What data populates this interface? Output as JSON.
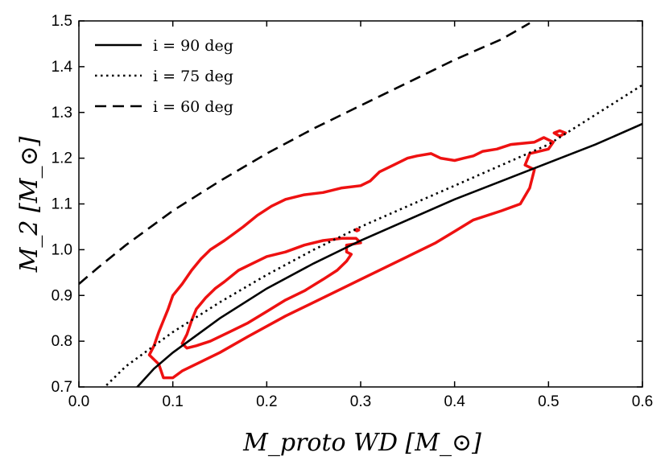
{
  "chart_data": {
    "type": "line",
    "title": "",
    "xlabel": "M_proto WD [M_⊙]",
    "ylabel": "M_2 [M_⊙]",
    "xlim": [
      0.0,
      0.6
    ],
    "ylim": [
      0.7,
      1.5
    ],
    "x_ticks": [
      "0.0",
      "0.1",
      "0.2",
      "0.3",
      "0.4",
      "0.5",
      "0.6"
    ],
    "y_ticks": [
      "0.7",
      "0.8",
      "0.9",
      "1.0",
      "1.1",
      "1.2",
      "1.3",
      "1.4",
      "1.5"
    ],
    "grid": false,
    "legend_position": "top-left",
    "series": [
      {
        "name": "i = 90 deg",
        "style": "solid",
        "color": "#000000",
        "x": [
          0.06,
          0.08,
          0.1,
          0.15,
          0.2,
          0.25,
          0.3,
          0.35,
          0.4,
          0.45,
          0.5,
          0.55,
          0.6
        ],
        "y": [
          0.695,
          0.74,
          0.775,
          0.85,
          0.915,
          0.97,
          1.02,
          1.065,
          1.11,
          1.15,
          1.19,
          1.23,
          1.275
        ]
      },
      {
        "name": "i = 75 deg",
        "style": "dotted",
        "color": "#000000",
        "x": [
          0.025,
          0.05,
          0.1,
          0.15,
          0.2,
          0.25,
          0.3,
          0.35,
          0.4,
          0.45,
          0.5,
          0.55,
          0.6
        ],
        "y": [
          0.695,
          0.745,
          0.82,
          0.885,
          0.945,
          1.0,
          1.05,
          1.095,
          1.14,
          1.185,
          1.23,
          1.295,
          1.36
        ]
      },
      {
        "name": "i = 60 deg",
        "style": "dashed",
        "color": "#000000",
        "x": [
          0.0,
          0.02,
          0.05,
          0.1,
          0.15,
          0.2,
          0.25,
          0.3,
          0.35,
          0.4,
          0.45,
          0.48
        ],
        "y": [
          0.925,
          0.96,
          1.01,
          1.085,
          1.15,
          1.21,
          1.265,
          1.315,
          1.365,
          1.415,
          1.46,
          1.495
        ]
      }
    ],
    "contours": [
      {
        "color": "#ee1111",
        "points": [
          [
            0.085,
            0.75
          ],
          [
            0.09,
            0.72
          ],
          [
            0.1,
            0.72
          ],
          [
            0.11,
            0.735
          ],
          [
            0.13,
            0.755
          ],
          [
            0.15,
            0.775
          ],
          [
            0.18,
            0.81
          ],
          [
            0.22,
            0.855
          ],
          [
            0.25,
            0.885
          ],
          [
            0.27,
            0.905
          ],
          [
            0.3,
            0.935
          ],
          [
            0.35,
            0.985
          ],
          [
            0.38,
            1.015
          ],
          [
            0.4,
            1.04
          ],
          [
            0.42,
            1.065
          ],
          [
            0.45,
            1.085
          ],
          [
            0.47,
            1.1
          ],
          [
            0.48,
            1.135
          ],
          [
            0.485,
            1.175
          ],
          [
            0.475,
            1.185
          ],
          [
            0.48,
            1.21
          ],
          [
            0.5,
            1.22
          ],
          [
            0.505,
            1.235
          ],
          [
            0.495,
            1.245
          ],
          [
            0.485,
            1.235
          ],
          [
            0.46,
            1.23
          ],
          [
            0.445,
            1.22
          ],
          [
            0.43,
            1.215
          ],
          [
            0.42,
            1.205
          ],
          [
            0.41,
            1.2
          ],
          [
            0.4,
            1.195
          ],
          [
            0.385,
            1.2
          ],
          [
            0.375,
            1.21
          ],
          [
            0.36,
            1.205
          ],
          [
            0.35,
            1.2
          ],
          [
            0.335,
            1.185
          ],
          [
            0.32,
            1.17
          ],
          [
            0.31,
            1.15
          ],
          [
            0.3,
            1.14
          ],
          [
            0.28,
            1.135
          ],
          [
            0.26,
            1.125
          ],
          [
            0.24,
            1.12
          ],
          [
            0.22,
            1.11
          ],
          [
            0.205,
            1.095
          ],
          [
            0.19,
            1.075
          ],
          [
            0.175,
            1.05
          ],
          [
            0.165,
            1.035
          ],
          [
            0.155,
            1.02
          ],
          [
            0.14,
            1.0
          ],
          [
            0.13,
            0.98
          ],
          [
            0.12,
            0.955
          ],
          [
            0.11,
            0.925
          ],
          [
            0.1,
            0.9
          ],
          [
            0.095,
            0.87
          ],
          [
            0.09,
            0.845
          ],
          [
            0.085,
            0.82
          ],
          [
            0.08,
            0.79
          ],
          [
            0.075,
            0.77
          ],
          [
            0.085,
            0.75
          ]
        ]
      },
      {
        "color": "#ee1111",
        "points": [
          [
            0.115,
            0.785
          ],
          [
            0.125,
            0.79
          ],
          [
            0.14,
            0.8
          ],
          [
            0.16,
            0.82
          ],
          [
            0.18,
            0.84
          ],
          [
            0.2,
            0.865
          ],
          [
            0.22,
            0.89
          ],
          [
            0.24,
            0.91
          ],
          [
            0.26,
            0.935
          ],
          [
            0.275,
            0.955
          ],
          [
            0.285,
            0.975
          ],
          [
            0.29,
            0.99
          ],
          [
            0.285,
            0.995
          ],
          [
            0.285,
            1.01
          ],
          [
            0.3,
            1.015
          ],
          [
            0.295,
            1.025
          ],
          [
            0.28,
            1.025
          ],
          [
            0.26,
            1.02
          ],
          [
            0.24,
            1.01
          ],
          [
            0.22,
            0.995
          ],
          [
            0.2,
            0.985
          ],
          [
            0.185,
            0.97
          ],
          [
            0.17,
            0.955
          ],
          [
            0.155,
            0.93
          ],
          [
            0.145,
            0.915
          ],
          [
            0.135,
            0.895
          ],
          [
            0.125,
            0.87
          ],
          [
            0.12,
            0.845
          ],
          [
            0.115,
            0.815
          ],
          [
            0.11,
            0.795
          ],
          [
            0.115,
            0.785
          ]
        ]
      },
      {
        "color": "#ee1111",
        "points": [
          [
            0.506,
            1.255
          ],
          [
            0.512,
            1.26
          ],
          [
            0.518,
            1.255
          ],
          [
            0.512,
            1.248
          ],
          [
            0.506,
            1.255
          ]
        ]
      },
      {
        "color": "#ee1111",
        "points": [
          [
            0.294,
            1.043
          ],
          [
            0.296,
            1.045
          ],
          [
            0.298,
            1.043
          ],
          [
            0.296,
            1.041
          ],
          [
            0.294,
            1.043
          ]
        ]
      }
    ]
  }
}
